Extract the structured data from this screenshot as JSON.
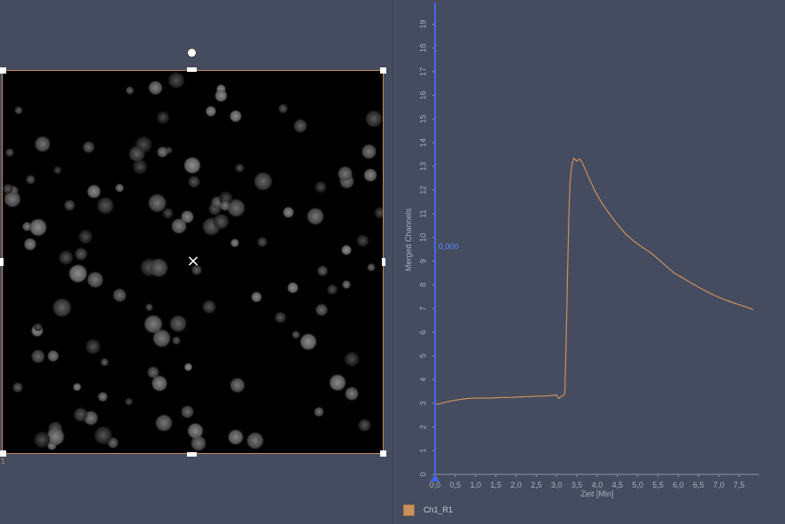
{
  "image_panel": {
    "roi_index": "1",
    "center_marker": "×"
  },
  "legend": {
    "label": "Ch1_R1",
    "color": "#c8905a"
  },
  "cursor": {
    "label": "0,000",
    "x": 0,
    "color": "#4466ee",
    "label_color": "#5b8cff"
  },
  "chart_data": {
    "type": "line",
    "xlabel": "Zeit [Min]",
    "ylabel": "Merged Channels",
    "xlim": [
      0,
      8.0
    ],
    "ylim": [
      0,
      19.8
    ],
    "x_ticks": [
      "0,0",
      "0,5",
      "1,0",
      "1,5",
      "2,0",
      "2,5",
      "3,0",
      "3,5",
      "4,0",
      "4,5",
      "5,0",
      "5,5",
      "6,0",
      "6,5",
      "7,0",
      "7,5"
    ],
    "x_tick_values": [
      0,
      0.5,
      1,
      1.5,
      2,
      2.5,
      3,
      3.5,
      4,
      4.5,
      5,
      5.5,
      6,
      6.5,
      7,
      7.5
    ],
    "y_ticks": [
      "0",
      "1",
      "2",
      "3",
      "4",
      "5",
      "6",
      "7",
      "8",
      "9",
      "10",
      "11",
      "12",
      "13",
      "14",
      "15",
      "16",
      "17",
      "18",
      "19"
    ],
    "y_tick_values": [
      0,
      1,
      2,
      3,
      4,
      5,
      6,
      7,
      8,
      9,
      10,
      11,
      12,
      13,
      14,
      15,
      16,
      17,
      18,
      19
    ],
    "series": [
      {
        "name": "Ch1_R1",
        "color": "#c8905a",
        "points": [
          [
            0.0,
            2.95
          ],
          [
            0.1,
            2.98
          ],
          [
            0.2,
            3.02
          ],
          [
            0.4,
            3.1
          ],
          [
            0.6,
            3.16
          ],
          [
            0.8,
            3.2
          ],
          [
            1.0,
            3.22
          ],
          [
            1.3,
            3.22
          ],
          [
            1.6,
            3.24
          ],
          [
            1.9,
            3.25
          ],
          [
            2.1,
            3.27
          ],
          [
            2.3,
            3.28
          ],
          [
            2.5,
            3.3
          ],
          [
            2.7,
            3.3
          ],
          [
            2.9,
            3.33
          ],
          [
            3.0,
            3.35
          ],
          [
            3.05,
            3.2
          ],
          [
            3.12,
            3.3
          ],
          [
            3.18,
            3.35
          ],
          [
            3.2,
            3.4
          ],
          [
            3.22,
            4.5
          ],
          [
            3.24,
            6.0
          ],
          [
            3.27,
            8.5
          ],
          [
            3.3,
            10.8
          ],
          [
            3.33,
            12.3
          ],
          [
            3.37,
            13.0
          ],
          [
            3.42,
            13.35
          ],
          [
            3.5,
            13.22
          ],
          [
            3.57,
            13.32
          ],
          [
            3.62,
            13.2
          ],
          [
            3.7,
            12.9
          ],
          [
            3.8,
            12.5
          ],
          [
            3.95,
            11.95
          ],
          [
            4.1,
            11.5
          ],
          [
            4.3,
            11.0
          ],
          [
            4.5,
            10.55
          ],
          [
            4.7,
            10.15
          ],
          [
            4.9,
            9.85
          ],
          [
            5.1,
            9.6
          ],
          [
            5.3,
            9.38
          ],
          [
            5.5,
            9.1
          ],
          [
            5.7,
            8.8
          ],
          [
            5.9,
            8.5
          ],
          [
            6.1,
            8.3
          ],
          [
            6.3,
            8.1
          ],
          [
            6.5,
            7.9
          ],
          [
            6.7,
            7.72
          ],
          [
            6.9,
            7.55
          ],
          [
            7.1,
            7.4
          ],
          [
            7.3,
            7.28
          ],
          [
            7.5,
            7.16
          ],
          [
            7.7,
            7.05
          ],
          [
            7.85,
            6.95
          ]
        ]
      }
    ]
  }
}
